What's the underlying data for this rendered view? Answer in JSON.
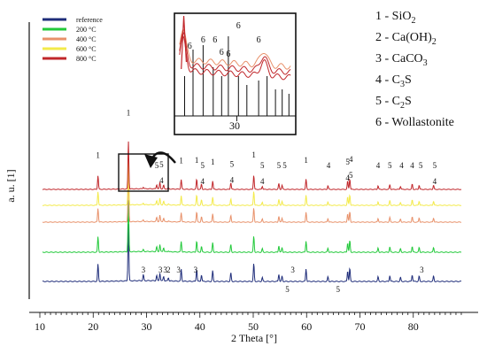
{
  "chart_data": {
    "type": "line",
    "xlabel": "2 Theta [°]",
    "ylabel": "a. u. [1]",
    "xlim": [
      10,
      90
    ],
    "x_ticks": [
      10,
      20,
      30,
      40,
      50,
      60,
      70,
      80
    ],
    "y_ticks_shown": false,
    "legend_position": "top-left",
    "series": [
      {
        "name": "reference",
        "color": "#1f2d7a",
        "baseline": 0
      },
      {
        "name": "200 °C",
        "color": "#22c93a",
        "baseline": 1
      },
      {
        "name": "400 °C",
        "color": "#e8916a",
        "baseline": 2
      },
      {
        "name": "600 °C",
        "color": "#f3ea4a",
        "baseline": 3
      },
      {
        "name": "800 °C",
        "color": "#c0262a",
        "baseline": 4
      }
    ],
    "peaks": [
      {
        "x": 20.9,
        "h": 2.6
      },
      {
        "x": 26.6,
        "h": 9.0
      },
      {
        "x": 29.4,
        "h": 0.9
      },
      {
        "x": 31.9,
        "h": 0.8
      },
      {
        "x": 32.5,
        "h": 1.2
      },
      {
        "x": 33.2,
        "h": 0.7
      },
      {
        "x": 34.1,
        "h": 0.5
      },
      {
        "x": 36.5,
        "h": 1.8
      },
      {
        "x": 39.4,
        "h": 1.9
      },
      {
        "x": 40.3,
        "h": 1.0
      },
      {
        "x": 42.4,
        "h": 1.6
      },
      {
        "x": 45.8,
        "h": 1.3
      },
      {
        "x": 50.1,
        "h": 2.7
      },
      {
        "x": 51.7,
        "h": 0.6
      },
      {
        "x": 54.8,
        "h": 1.1
      },
      {
        "x": 55.4,
        "h": 0.8
      },
      {
        "x": 59.9,
        "h": 1.9
      },
      {
        "x": 64.0,
        "h": 0.7
      },
      {
        "x": 67.7,
        "h": 1.6
      },
      {
        "x": 68.1,
        "h": 2.0
      },
      {
        "x": 73.4,
        "h": 0.7
      },
      {
        "x": 75.6,
        "h": 0.9
      },
      {
        "x": 77.6,
        "h": 0.6
      },
      {
        "x": 79.8,
        "h": 1.0
      },
      {
        "x": 81.1,
        "h": 0.8
      },
      {
        "x": 83.8,
        "h": 0.8
      }
    ],
    "peak_labels_top": [
      {
        "text": "1",
        "x": 20.9
      },
      {
        "text": "1",
        "x": 26.6
      },
      {
        "text": "5",
        "x": 31.9
      },
      {
        "text": "5",
        "x": 32.8
      },
      {
        "text": "4",
        "x": 32.8
      },
      {
        "text": "1",
        "x": 36.5
      },
      {
        "text": "1",
        "x": 39.4
      },
      {
        "text": "5",
        "x": 40.5
      },
      {
        "text": "4",
        "x": 40.5
      },
      {
        "text": "1",
        "x": 42.4
      },
      {
        "text": "5",
        "x": 46.0
      },
      {
        "text": "4",
        "x": 46.0
      },
      {
        "text": "1",
        "x": 50.1
      },
      {
        "text": "5",
        "x": 51.7
      },
      {
        "text": "4",
        "x": 51.7
      },
      {
        "text": "5",
        "x": 54.8
      },
      {
        "text": "5",
        "x": 55.9
      },
      {
        "text": "1",
        "x": 59.9
      },
      {
        "text": "4",
        "x": 64.1
      },
      {
        "text": "5",
        "x": 67.7
      },
      {
        "text": "4",
        "x": 67.7
      },
      {
        "text": "4",
        "x": 68.3
      },
      {
        "text": "5",
        "x": 68.3
      },
      {
        "text": "4",
        "x": 73.4
      },
      {
        "text": "5",
        "x": 75.6
      },
      {
        "text": "4",
        "x": 77.8
      },
      {
        "text": "4",
        "x": 79.8
      },
      {
        "text": "5",
        "x": 81.4
      },
      {
        "text": "5",
        "x": 84.0
      },
      {
        "text": "4",
        "x": 84.0
      }
    ],
    "peak_labels_reference": [
      {
        "text": "3",
        "x": 29.4
      },
      {
        "text": "3",
        "x": 32.6
      },
      {
        "text": "3",
        "x": 33.5
      },
      {
        "text": "2",
        "x": 34.1
      },
      {
        "text": "3",
        "x": 36.0
      },
      {
        "text": "3",
        "x": 39.2
      },
      {
        "text": "5",
        "x": 56.4
      },
      {
        "text": "3",
        "x": 57.4
      },
      {
        "text": "5",
        "x": 65.9
      },
      {
        "text": "3",
        "x": 81.6
      }
    ],
    "inset": {
      "x_tick": 30,
      "x_tick_label": "30",
      "reference_lines": [
        {
          "x": 26.9,
          "h": 0.45
        },
        {
          "x": 27.4,
          "h": 0.75
        },
        {
          "x": 28.0,
          "h": 0.8
        },
        {
          "x": 28.6,
          "h": 0.55
        },
        {
          "x": 29.1,
          "h": 0.45
        },
        {
          "x": 29.5,
          "h": 0.9
        },
        {
          "x": 30.1,
          "h": 0.45
        },
        {
          "x": 30.6,
          "h": 0.35
        },
        {
          "x": 31.3,
          "h": 0.4
        },
        {
          "x": 31.8,
          "h": 0.45
        },
        {
          "x": 32.3,
          "h": 0.3
        },
        {
          "x": 32.7,
          "h": 0.3
        },
        {
          "x": 33.1,
          "h": 0.25
        }
      ],
      "labels": [
        {
          "text": "6",
          "x": 27.2
        },
        {
          "text": "6",
          "x": 28.0
        },
        {
          "text": "6",
          "x": 28.7
        },
        {
          "text": "6",
          "x": 29.1
        },
        {
          "text": "6",
          "x": 29.5
        },
        {
          "text": "6",
          "x": 30.1
        },
        {
          "text": "6",
          "x": 31.3
        }
      ]
    }
  },
  "legend_phases": [
    "1 - SiO",
    "2 - Ca(OH)",
    "3 - CaCO",
    "4 - C",
    "5 - C",
    "6 - Wollastonite"
  ],
  "phase_subscripts": {
    "sio2": "2",
    "caoh2": "2",
    "caco3": "3",
    "c3s_sub": "3",
    "c3s_tail": "S",
    "c2s_sub": "2",
    "c2s_tail": "S"
  },
  "labels": {
    "xlabel": "2 Theta [°]",
    "ylabel": "a. u. [1]",
    "inset_tick": "30"
  }
}
